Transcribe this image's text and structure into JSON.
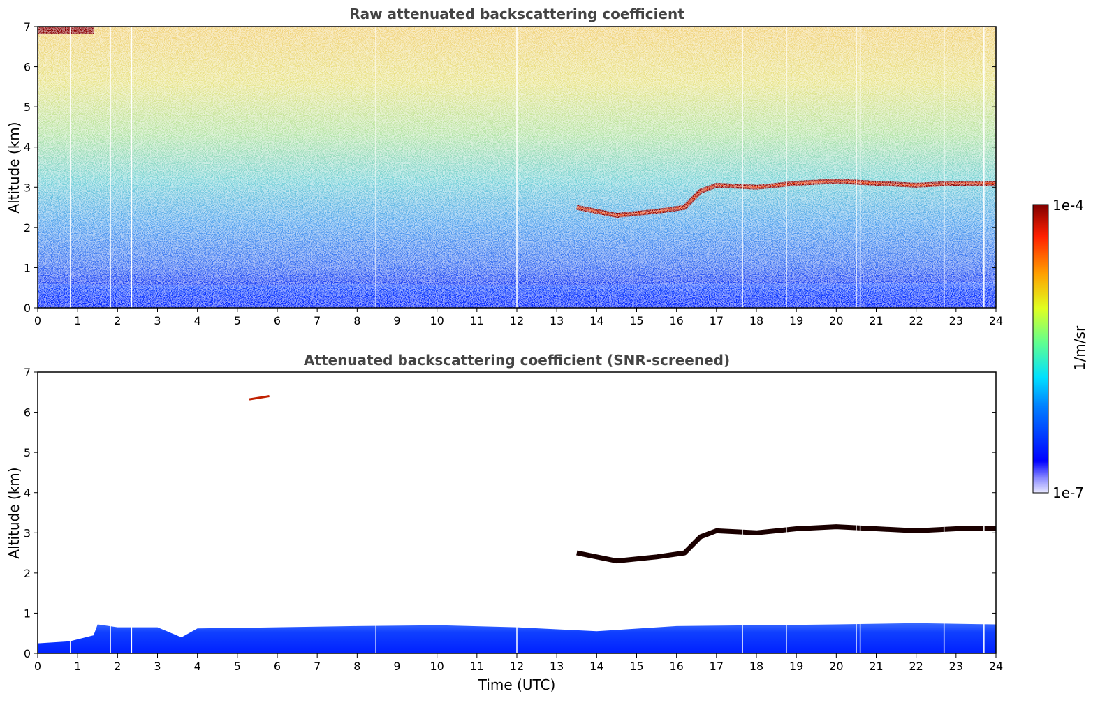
{
  "chart_data": [
    {
      "type": "heatmap",
      "title": "Raw attenuated backscattering coefficient",
      "xlabel": "",
      "ylabel": "Altitude (km)",
      "xlim": [
        0,
        24
      ],
      "ylim": [
        0,
        7
      ],
      "x_ticks": [
        "0",
        "1",
        "2",
        "3",
        "4",
        "5",
        "6",
        "7",
        "8",
        "9",
        "10",
        "11",
        "12",
        "13",
        "14",
        "15",
        "16",
        "17",
        "18",
        "19",
        "20",
        "21",
        "22",
        "23",
        "24"
      ],
      "y_ticks": [
        "0",
        "1",
        "2",
        "3",
        "4",
        "5",
        "6",
        "7"
      ],
      "colorscale": "jet",
      "screened": false,
      "features": {
        "boundary_layer_top_km": [
          [
            0,
            0.6
          ],
          [
            4,
            0.55
          ],
          [
            8,
            0.6
          ],
          [
            12,
            0.55
          ],
          [
            16,
            0.6
          ],
          [
            20,
            0.6
          ],
          [
            24,
            0.65
          ]
        ],
        "cloud_layer": [
          [
            13.5,
            2.5
          ],
          [
            14.5,
            2.3
          ],
          [
            15.5,
            2.4
          ],
          [
            16.2,
            2.5
          ],
          [
            16.6,
            2.9
          ],
          [
            17,
            3.05
          ],
          [
            18,
            3.0
          ],
          [
            19,
            3.1
          ],
          [
            20,
            3.15
          ],
          [
            21,
            3.1
          ],
          [
            22,
            3.05
          ],
          [
            23,
            3.1
          ],
          [
            24,
            3.1
          ]
        ],
        "high_cloud": [
          [
            0,
            6.9
          ],
          [
            1.4,
            6.9
          ]
        ],
        "data_gaps_hours": [
          0.82,
          1.82,
          2.35,
          8.47,
          12.0,
          17.65,
          18.75,
          20.5,
          20.6,
          22.7,
          23.7
        ]
      }
    },
    {
      "type": "heatmap",
      "title": "Attenuated backscattering coefficient (SNR-screened)",
      "xlabel": "Time (UTC)",
      "ylabel": "Altitude (km)",
      "xlim": [
        0,
        24
      ],
      "ylim": [
        0,
        7
      ],
      "x_ticks": [
        "0",
        "1",
        "2",
        "3",
        "4",
        "5",
        "6",
        "7",
        "8",
        "9",
        "10",
        "11",
        "12",
        "13",
        "14",
        "15",
        "16",
        "17",
        "18",
        "19",
        "20",
        "21",
        "22",
        "23",
        "24"
      ],
      "y_ticks": [
        "0",
        "1",
        "2",
        "3",
        "4",
        "5",
        "6",
        "7"
      ],
      "colorscale": "jet",
      "screened": true,
      "features": {
        "boundary_layer_top_km": [
          [
            0,
            0.25
          ],
          [
            0.8,
            0.3
          ],
          [
            1.4,
            0.45
          ],
          [
            1.5,
            0.72
          ],
          [
            2,
            0.65
          ],
          [
            3,
            0.65
          ],
          [
            3.6,
            0.4
          ],
          [
            4,
            0.62
          ],
          [
            6,
            0.65
          ],
          [
            8,
            0.68
          ],
          [
            10,
            0.7
          ],
          [
            12,
            0.65
          ],
          [
            14,
            0.55
          ],
          [
            16,
            0.68
          ],
          [
            18,
            0.7
          ],
          [
            20,
            0.72
          ],
          [
            22,
            0.75
          ],
          [
            24,
            0.72
          ]
        ],
        "cloud_layer": [
          [
            13.5,
            2.5
          ],
          [
            14.5,
            2.3
          ],
          [
            15.5,
            2.4
          ],
          [
            16.2,
            2.5
          ],
          [
            16.6,
            2.9
          ],
          [
            17,
            3.05
          ],
          [
            18,
            3.0
          ],
          [
            19,
            3.1
          ],
          [
            20,
            3.15
          ],
          [
            21,
            3.1
          ],
          [
            22,
            3.05
          ],
          [
            23,
            3.1
          ],
          [
            24,
            3.1
          ]
        ],
        "elevated_patch": [
          [
            5.3,
            6.32
          ],
          [
            5.8,
            6.4
          ]
        ],
        "data_gaps_hours": [
          0.82,
          1.82,
          2.35,
          8.47,
          12.0,
          17.65,
          18.75,
          20.5,
          20.6,
          22.7,
          23.7
        ]
      }
    }
  ],
  "colorbar": {
    "max_label": "1e-4",
    "min_label": "1e-7",
    "unit_label": "1/m/sr"
  }
}
